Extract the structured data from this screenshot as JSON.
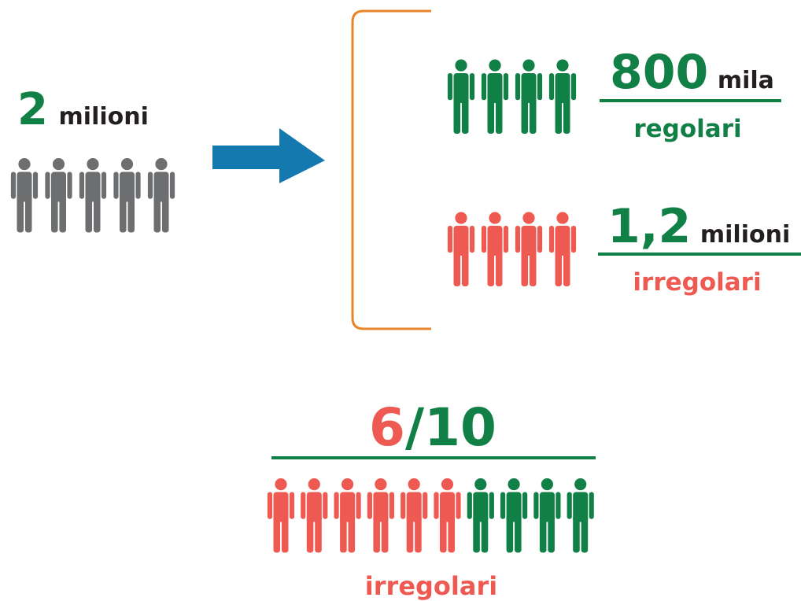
{
  "total": {
    "value": "2",
    "unit": "milioni",
    "icons": 5
  },
  "groups": [
    {
      "value": "800",
      "unit": "mila",
      "label": "regolari",
      "icons": 4,
      "color": "#118047"
    },
    {
      "value": "1,2",
      "unit": "milioni",
      "label": "irregolari",
      "icons": 4,
      "color": "#ee5a52"
    }
  ],
  "ratio": {
    "numerator": "6",
    "denominator": "/10",
    "label": "irregolari",
    "irregular_icons": 6,
    "regular_icons": 4
  }
}
